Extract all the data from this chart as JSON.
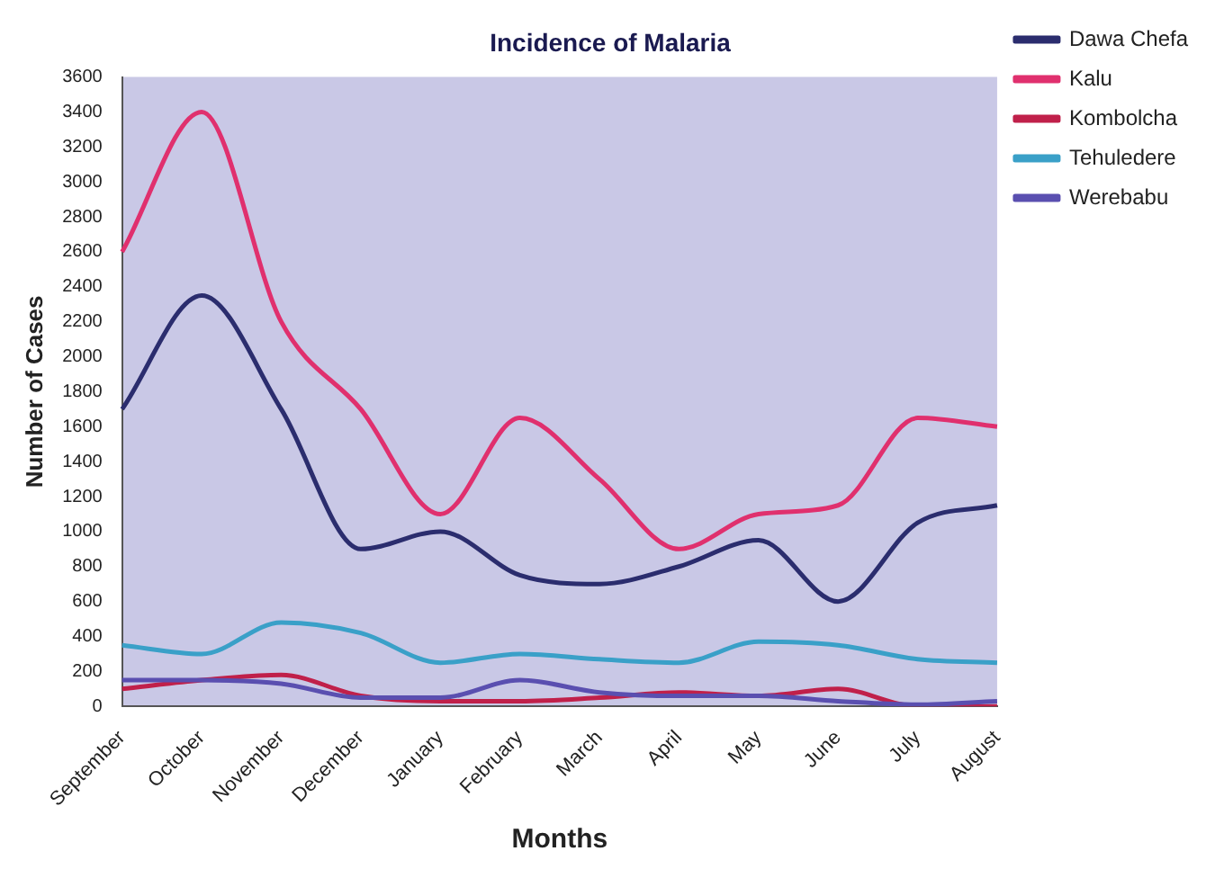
{
  "chart_data": {
    "type": "line",
    "title": "Incidence of Malaria",
    "xlabel": "Months",
    "ylabel": "Number of Cases",
    "categories": [
      "September",
      "October",
      "November",
      "December",
      "January",
      "February",
      "March",
      "April",
      "May",
      "June",
      "July",
      "August"
    ],
    "series": [
      {
        "name": "Dawa Chefa",
        "color": "#2b2d6e",
        "values": [
          1700,
          2350,
          1700,
          900,
          1000,
          750,
          700,
          800,
          950,
          600,
          1050,
          1150
        ]
      },
      {
        "name": "Kalu",
        "color": "#e0306e",
        "values": [
          2600,
          3400,
          2200,
          1700,
          1100,
          1650,
          1300,
          900,
          1100,
          1150,
          1650,
          1600
        ]
      },
      {
        "name": "Kombolcha",
        "color": "#c0204a",
        "values": [
          100,
          150,
          180,
          60,
          30,
          30,
          50,
          80,
          60,
          100,
          0,
          0
        ]
      },
      {
        "name": "Tehuledere",
        "color": "#3aa0c8",
        "values": [
          350,
          300,
          480,
          420,
          250,
          300,
          270,
          250,
          370,
          350,
          270,
          250
        ]
      },
      {
        "name": "Werebabu",
        "color": "#5a4fb0",
        "values": [
          150,
          150,
          130,
          50,
          50,
          150,
          80,
          60,
          60,
          30,
          10,
          30
        ]
      }
    ],
    "ylim": [
      0,
      3600
    ],
    "yticks": [
      0,
      200,
      400,
      600,
      800,
      1000,
      1200,
      1400,
      1600,
      1800,
      2000,
      2200,
      2400,
      2600,
      2800,
      3000,
      3200,
      3400,
      3600
    ],
    "grid": false,
    "legend": "top right",
    "marker": "none",
    "line_style": "solid"
  }
}
